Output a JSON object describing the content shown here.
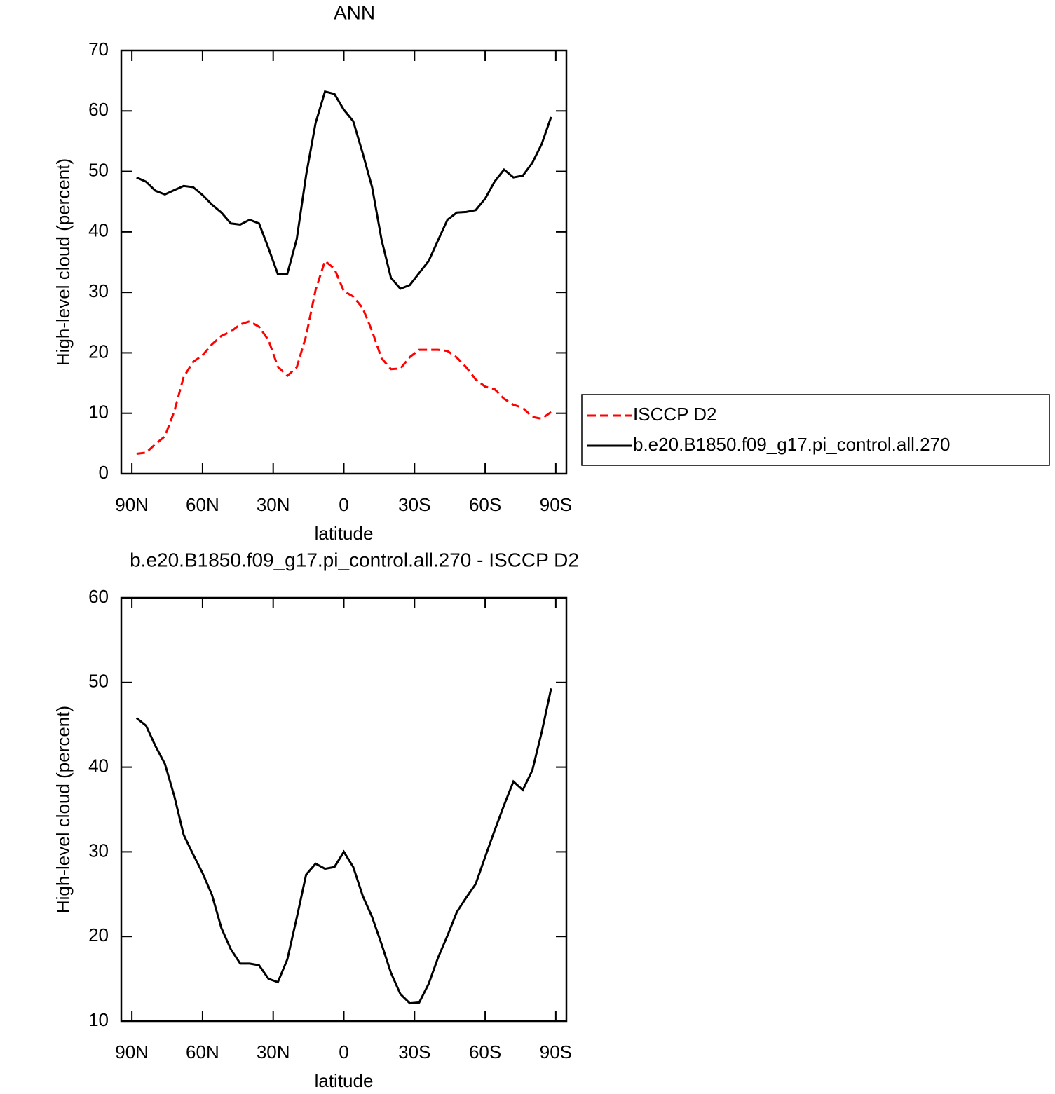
{
  "chart_data": [
    {
      "type": "line",
      "title": "ANN",
      "xlabel": "latitude",
      "ylabel": "High-level cloud (percent)",
      "x": [
        88,
        84,
        80,
        76,
        72,
        68,
        64,
        60,
        56,
        52,
        48,
        44,
        40,
        36,
        32,
        28,
        24,
        20,
        16,
        12,
        8,
        4,
        0,
        -4,
        -8,
        -12,
        -16,
        -20,
        -24,
        -28,
        -32,
        -36,
        -40,
        -44,
        -48,
        -52,
        -56,
        -60,
        -64,
        -68,
        -72,
        -76,
        -80,
        -84,
        -88
      ],
      "series": [
        {
          "name": "ISCCP D2",
          "color": "#ff0000",
          "style": "dashed",
          "values": [
            3.3,
            3.5,
            4.9,
            6.2,
            10.3,
            16.0,
            18.5,
            19.6,
            21.4,
            22.8,
            23.5,
            24.7,
            25.2,
            24.3,
            22.1,
            17.7,
            16.2,
            17.6,
            22.8,
            30.4,
            35.2,
            33.9,
            30.2,
            29.3,
            27.4,
            23.6,
            19.1,
            17.3,
            17.4,
            19.3,
            20.5,
            20.5,
            20.5,
            20.3,
            19.2,
            17.6,
            15.6,
            14.4,
            14.0,
            12.4,
            11.4,
            10.9,
            9.4,
            9.1,
            10.2
          ]
        },
        {
          "name": "b.e20.B1850.f09_g17.pi_control.all.270",
          "color": "#000000",
          "style": "solid",
          "values": [
            49.0,
            48.3,
            46.8,
            46.2,
            46.9,
            47.6,
            47.4,
            46.1,
            44.5,
            43.2,
            41.4,
            41.2,
            42.0,
            41.4,
            37.3,
            33.0,
            33.1,
            38.8,
            49.4,
            58.0,
            63.2,
            62.8,
            60.2,
            58.3,
            53.0,
            47.4,
            38.7,
            32.4,
            30.6,
            31.2,
            33.2,
            35.2,
            38.6,
            42.0,
            43.2,
            43.3,
            43.6,
            45.5,
            48.3,
            50.3,
            49.0,
            49.3,
            51.4,
            54.5,
            59.0
          ]
        }
      ],
      "xlim": [
        94.5,
        -94.5
      ],
      "xticks": [
        {
          "value": 90,
          "label": "90N"
        },
        {
          "value": 60,
          "label": "60N"
        },
        {
          "value": 30,
          "label": "30N"
        },
        0,
        {
          "value": -30,
          "label": "30S"
        },
        {
          "value": -60,
          "label": "60S"
        },
        {
          "value": -90,
          "label": "90S"
        }
      ],
      "ylim": [
        0,
        70
      ],
      "yticks": [
        0,
        10,
        20,
        30,
        40,
        50,
        60,
        70
      ],
      "legend": "right"
    },
    {
      "type": "line",
      "title": "b.e20.B1850.f09_g17.pi_control.all.270 - ISCCP D2",
      "xlabel": "latitude",
      "ylabel": "High-level cloud (percent)",
      "x": [
        88,
        84,
        80,
        76,
        72,
        68,
        64,
        60,
        56,
        52,
        48,
        44,
        40,
        36,
        32,
        28,
        24,
        20,
        16,
        12,
        8,
        4,
        0,
        -4,
        -8,
        -12,
        -16,
        -20,
        -24,
        -28,
        -32,
        -36,
        -40,
        -44,
        -48,
        -52,
        -56,
        -60,
        -64,
        -68,
        -72,
        -76,
        -80,
        -84,
        -88
      ],
      "color": "#000000",
      "style": "solid",
      "values": [
        45.8,
        44.9,
        42.5,
        40.4,
        36.6,
        32.0,
        29.7,
        27.5,
        24.9,
        21.0,
        18.5,
        16.8,
        16.8,
        16.6,
        15.0,
        14.6,
        17.3,
        22.2,
        27.3,
        28.6,
        28.0,
        28.2,
        30.0,
        28.2,
        24.8,
        22.3,
        19.1,
        15.7,
        13.2,
        12.1,
        12.2,
        14.4,
        17.5,
        20.1,
        22.9,
        24.6,
        26.2,
        29.4,
        32.5,
        35.5,
        38.3,
        37.3,
        39.6,
        44.1,
        49.3
      ],
      "xlim": [
        94.5,
        -94.5
      ],
      "xticks": [
        {
          "value": 90,
          "label": "90N"
        },
        {
          "value": 60,
          "label": "60N"
        },
        {
          "value": 30,
          "label": "30N"
        },
        0,
        {
          "value": -30,
          "label": "30S"
        },
        {
          "value": -60,
          "label": "60S"
        },
        {
          "value": -90,
          "label": "90S"
        }
      ],
      "ylim": [
        10,
        60
      ],
      "yticks": [
        10,
        20,
        30,
        40,
        50,
        60
      ]
    }
  ]
}
